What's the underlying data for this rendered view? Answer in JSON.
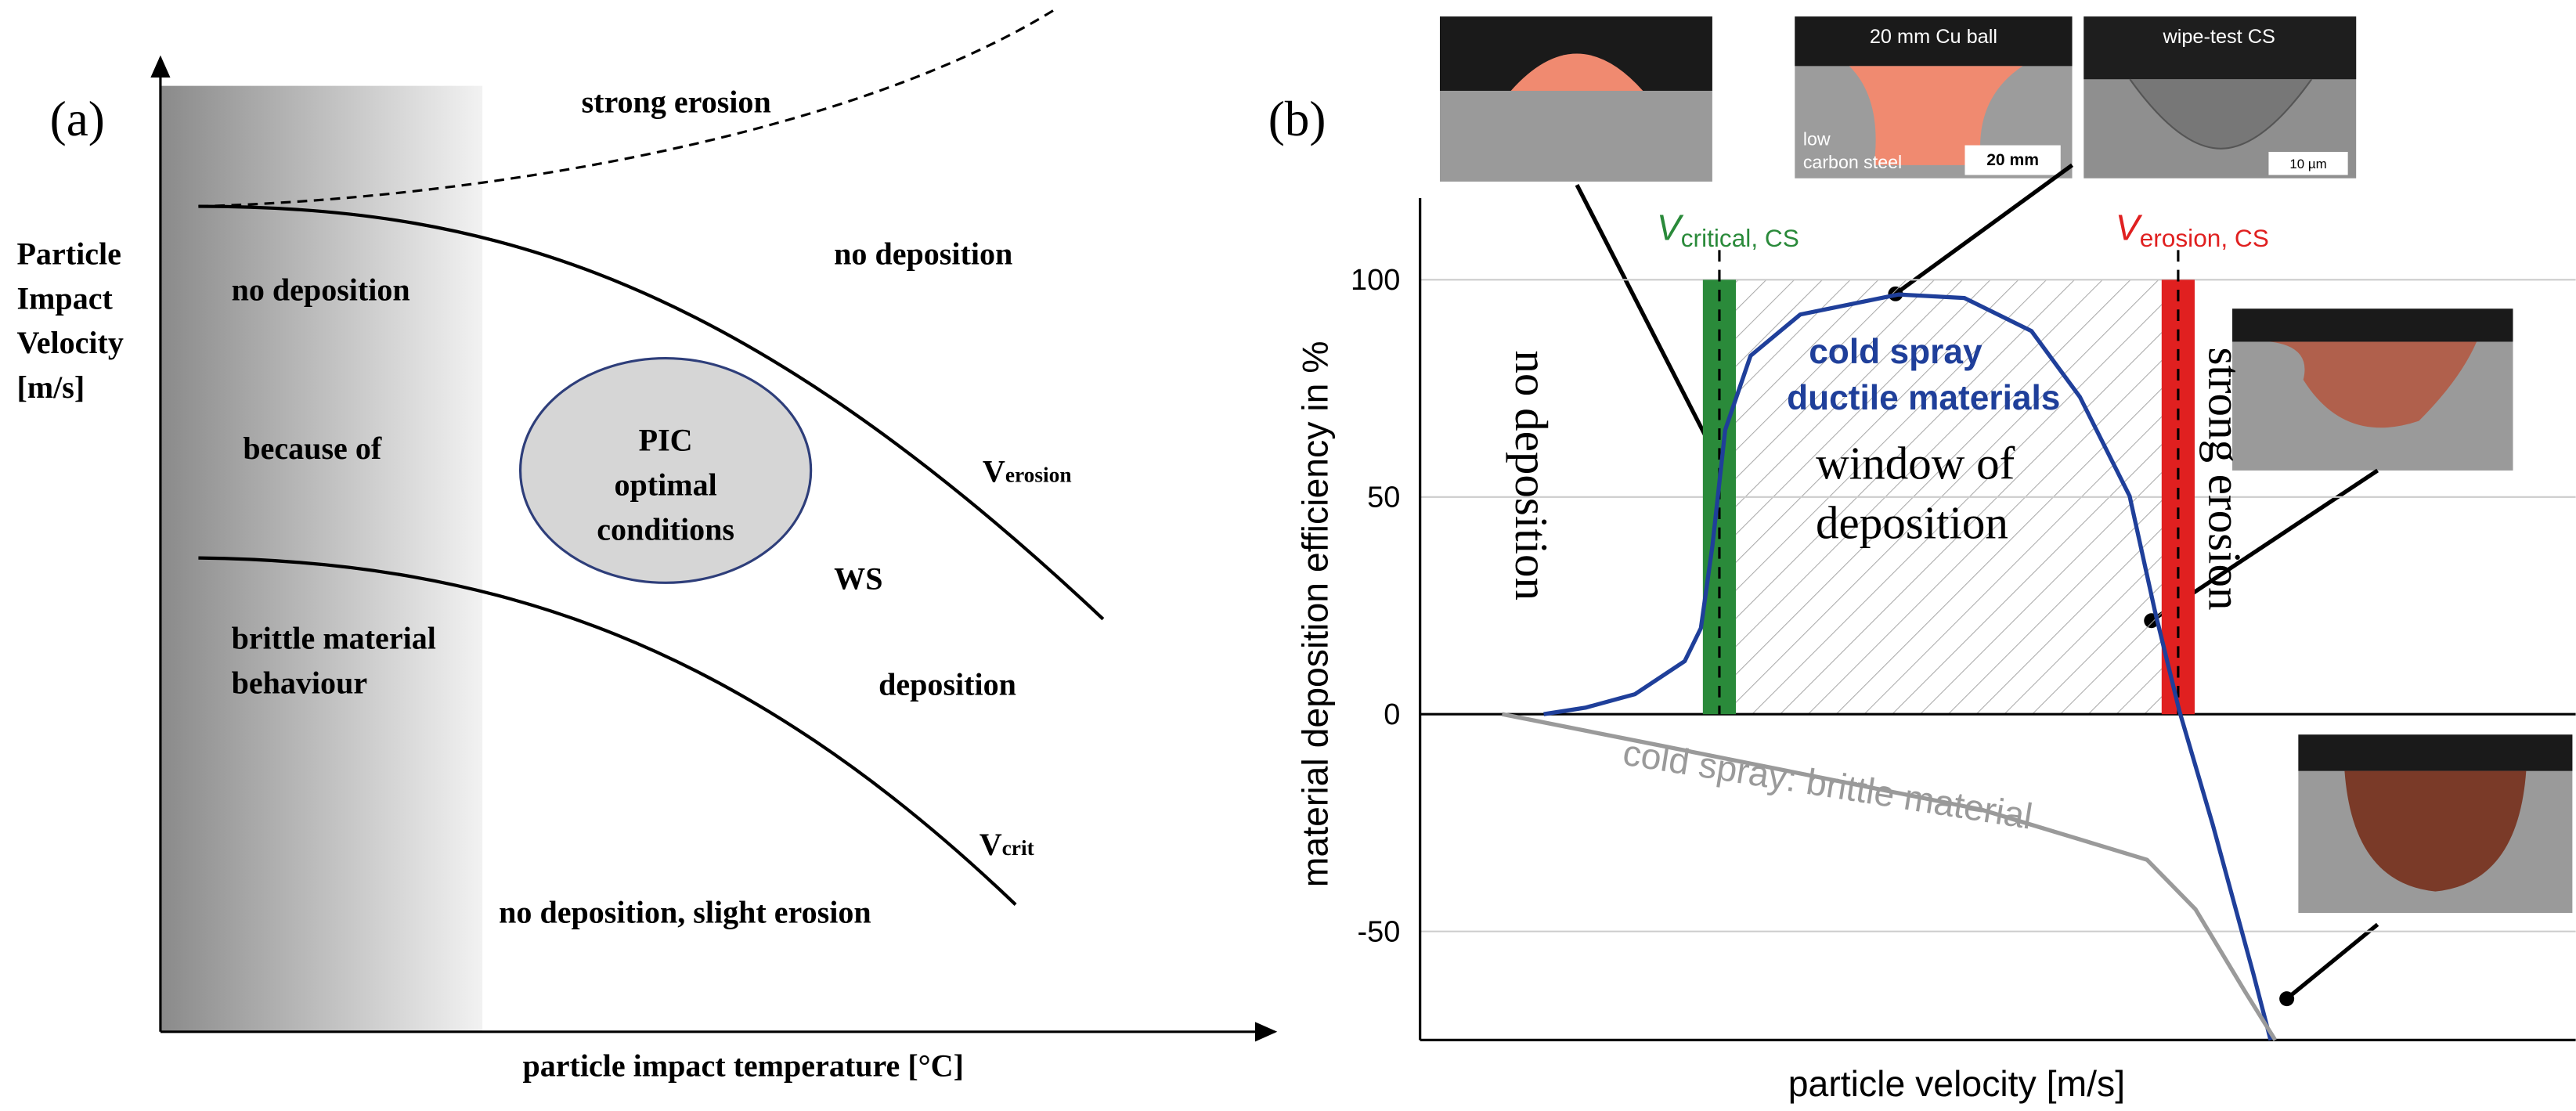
{
  "panel_a": {
    "label": "(a)",
    "y_axis_label": [
      "Particle",
      "Impact",
      "Velocity",
      "[m/s]"
    ],
    "x_axis_label": "particle impact temperature [°C]",
    "regions": {
      "strong_erosion": "strong erosion",
      "no_deposition_top": "no deposition",
      "no_deposition_left": "no deposition",
      "because_of": "because of",
      "brittle": [
        "brittle material",
        "behaviour"
      ],
      "ws": "WS",
      "deposition": "deposition",
      "slight_erosion": "no deposition, slight erosion"
    },
    "circle": [
      "PIC",
      "optimal",
      "conditions"
    ],
    "v_erosion": {
      "symbol": "V",
      "subscript": "erosion"
    },
    "v_crit": {
      "symbol": "V",
      "subscript": "crit"
    }
  },
  "photos": {
    "cu_ball": "20 mm Cu ball",
    "steel": [
      "low",
      "carbon steel"
    ],
    "scale_1": "20 mm",
    "wipe_test": "wipe-test CS",
    "scale_2": "10 µm"
  },
  "chart_data": {
    "type": "line",
    "label": "(b)",
    "ylabel": "material deposition efficiency in %",
    "xlabel": "particle velocity [m/s]",
    "xlim": [
      0,
      100
    ],
    "ylim": [
      -75,
      115
    ],
    "yticks": [
      100,
      50,
      0,
      -50
    ],
    "grid": true,
    "series": [
      {
        "name": "cold spray ductile materials",
        "color": "#1f3f9a",
        "x": [
          10.7,
          14.3,
          18.6,
          22.9,
          24.3,
          25.3,
          26.4,
          28.6,
          32.9,
          41.4,
          47.1,
          52.9,
          57.1,
          61.4,
          63.6,
          65.7,
          68.6,
          72.1,
          73.6
        ],
        "values": [
          0,
          1.5,
          4.6,
          12.2,
          19.8,
          38.8,
          65.4,
          82.5,
          92,
          96.6,
          95.8,
          88.2,
          73,
          50.2,
          23.6,
          0.8,
          -25.5,
          -59.7,
          -75
        ]
      },
      {
        "name": "cold spray: brittle material",
        "color": "#9a9a9a",
        "x": [
          7.1,
          20,
          34.3,
          48.6,
          62.9,
          67.1,
          71.4,
          74
        ],
        "values": [
          0,
          -6.8,
          -14.4,
          -22,
          -33.5,
          -44.9,
          -63.9,
          -75
        ]
      }
    ],
    "v_critical": {
      "symbol": "V",
      "subscript": "critical, CS",
      "x": 25.9,
      "color": "#2a8a3a"
    },
    "v_erosion": {
      "symbol": "V",
      "subscript": "erosion, CS",
      "x": 65.6,
      "color": "#e02020"
    },
    "annotations": {
      "no_deposition": "no deposition",
      "window": [
        "window of",
        "deposition"
      ],
      "strong_erosion": "strong erosion"
    }
  }
}
